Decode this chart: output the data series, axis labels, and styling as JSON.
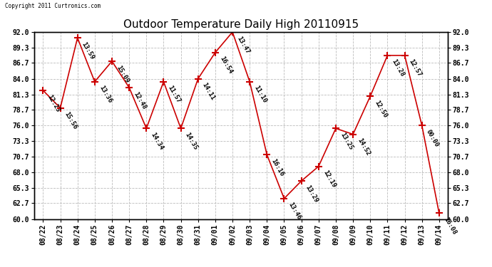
{
  "title": "Outdoor Temperature Daily High 20110915",
  "copyright_text": "Copyright 2011 Curtronics.com",
  "dates": [
    "08/22",
    "08/23",
    "08/24",
    "08/25",
    "08/26",
    "08/27",
    "08/28",
    "08/29",
    "08/30",
    "08/31",
    "09/01",
    "09/02",
    "09/03",
    "09/04",
    "09/05",
    "09/06",
    "09/07",
    "09/08",
    "09/09",
    "09/10",
    "09/11",
    "09/12",
    "09/13",
    "09/14"
  ],
  "values": [
    82.0,
    79.0,
    91.0,
    83.5,
    87.0,
    82.5,
    75.5,
    83.5,
    75.5,
    84.0,
    88.5,
    92.0,
    83.5,
    71.0,
    63.5,
    66.5,
    69.0,
    75.5,
    74.5,
    81.0,
    88.0,
    88.0,
    76.0,
    61.0
  ],
  "times": [
    "12:23",
    "15:56",
    "13:59",
    "13:36",
    "15:09",
    "12:48",
    "14:34",
    "11:57",
    "14:35",
    "14:11",
    "16:54",
    "13:47",
    "11:10",
    "16:16",
    "13:46",
    "13:29",
    "12:19",
    "13:25",
    "14:52",
    "12:50",
    "13:28",
    "12:57",
    "00:00",
    "16:08"
  ],
  "line_color": "#cc0000",
  "marker_color": "#cc0000",
  "background_color": "#ffffff",
  "plot_bg_color": "#ffffff",
  "grid_color": "#bbbbbb",
  "ylim": [
    60.0,
    92.0
  ],
  "yticks": [
    60.0,
    62.7,
    65.3,
    68.0,
    70.7,
    73.3,
    76.0,
    78.7,
    81.3,
    84.0,
    86.7,
    89.3,
    92.0
  ],
  "title_fontsize": 11,
  "tick_fontsize": 7,
  "annot_fontsize": 6.5
}
